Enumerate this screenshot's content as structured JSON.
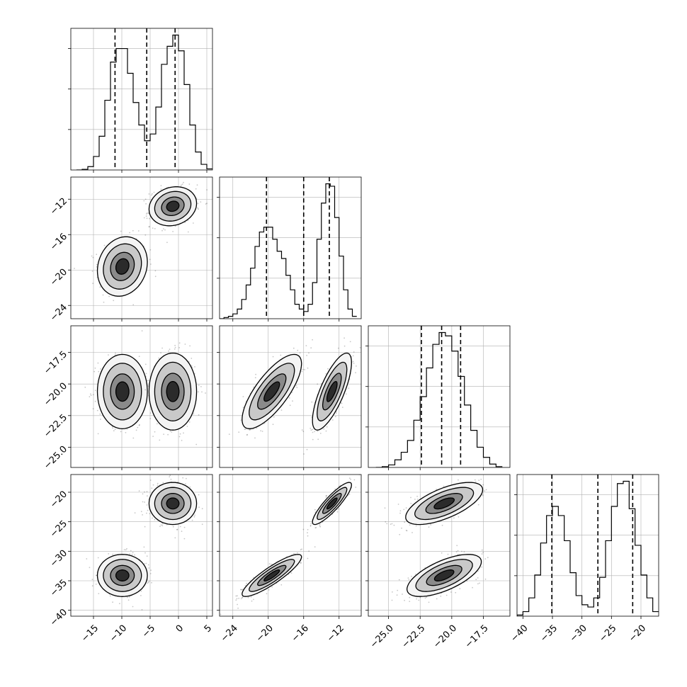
{
  "chart_data": {
    "type": "corner",
    "variables": [
      {
        "range": [
          -19,
          6
        ],
        "ticks": [
          -15,
          -10,
          -5,
          0,
          5
        ],
        "tick_labels": [
          "−15",
          "−10",
          "−5",
          "0",
          "5"
        ]
      },
      {
        "range": [
          -25.5,
          -9.5
        ],
        "ticks": [
          -24,
          -20,
          -16,
          -12
        ],
        "tick_labels": [
          "−24",
          "−20",
          "−16",
          "−12"
        ]
      },
      {
        "range": [
          -26.6,
          -15.4
        ],
        "ticks": [
          -25,
          -22.5,
          -20,
          -17.5
        ],
        "tick_labels": [
          "−25.0",
          "−22.5",
          "−20.0",
          "−17.5"
        ]
      },
      {
        "range": [
          -41,
          -17
        ],
        "ticks": [
          -40,
          -35,
          -30,
          -25,
          -20
        ],
        "tick_labels": [
          "−40",
          "−35",
          "−30",
          "−25",
          "−20"
        ]
      }
    ],
    "histograms": [
      {
        "bin_edges": [
          -18,
          -17,
          -16,
          -15,
          -14,
          -13,
          -12,
          -11,
          -10,
          -9,
          -8,
          -7,
          -6,
          -5,
          -4,
          -3,
          -2,
          -1,
          0,
          1,
          2,
          3,
          4,
          5,
          6
        ],
        "counts": [
          0,
          3,
          15,
          60,
          150,
          310,
          480,
          540,
          540,
          430,
          300,
          200,
          130,
          160,
          280,
          470,
          550,
          600,
          530,
          380,
          200,
          80,
          25,
          5
        ],
        "quantiles": [
          -11.2,
          -5.6,
          -0.6
        ]
      },
      {
        "bin_edges": [
          -25.5,
          -25,
          -24.5,
          -24,
          -23.5,
          -23,
          -22.5,
          -22,
          -21.5,
          -21,
          -20.5,
          -20,
          -19.5,
          -19,
          -18.5,
          -18,
          -17.5,
          -17,
          -16.5,
          -16,
          -15.5,
          -15,
          -14.5,
          -14,
          -13.5,
          -13,
          -12.5,
          -12,
          -11.5,
          -11,
          -10.5,
          -10
        ],
        "counts": [
          0,
          5,
          10,
          20,
          40,
          80,
          140,
          210,
          300,
          360,
          380,
          380,
          330,
          280,
          250,
          180,
          120,
          60,
          40,
          30,
          60,
          150,
          330,
          480,
          560,
          550,
          420,
          260,
          120,
          40,
          10
        ],
        "quantiles": [
          -20.2,
          -16,
          -13.1
        ]
      },
      {
        "bin_edges": [
          -26,
          -25.5,
          -25,
          -24.5,
          -24,
          -23.5,
          -23,
          -22.5,
          -22,
          -21.5,
          -21,
          -20.5,
          -20,
          -19.5,
          -19,
          -18.5,
          -18,
          -17.5,
          -17,
          -16.5,
          -16
        ],
        "counts": [
          0,
          5,
          15,
          45,
          90,
          160,
          280,
          420,
          590,
          730,
          800,
          780,
          690,
          540,
          370,
          220,
          120,
          60,
          20,
          5
        ],
        "quantiles": [
          -22.4,
          -20.8,
          -19.3
        ]
      },
      {
        "bin_edges": [
          -41,
          -40,
          -39,
          -38,
          -37,
          -36,
          -35,
          -34,
          -33,
          -32,
          -31,
          -30,
          -29,
          -28,
          -27,
          -26,
          -25,
          -24,
          -23,
          -22,
          -21,
          -20,
          -19,
          -18,
          -17
        ],
        "counts": [
          5,
          20,
          80,
          180,
          320,
          440,
          480,
          440,
          330,
          190,
          90,
          50,
          40,
          80,
          170,
          330,
          480,
          580,
          590,
          470,
          310,
          180,
          80,
          20
        ],
        "quantiles": [
          -35.1,
          -27.3,
          -21.4
        ]
      }
    ],
    "clusters": [
      {
        "means": [
          -9.9,
          -19.6,
          -20.6,
          -34.1
        ],
        "sds": [
          2.1,
          1.6,
          1.4,
          1.7
        ]
      },
      {
        "means": [
          -1.0,
          -12.8,
          -20.6,
          -21.9
        ],
        "sds": [
          2.0,
          1.05,
          1.45,
          1.7
        ]
      }
    ],
    "correlations": [
      [
        0.0,
        0.0,
        0.0,
        0.0
      ],
      [
        0.15,
        0.0,
        0.0,
        0.0
      ],
      [
        0.0,
        0.75,
        0.0,
        0.0
      ],
      [
        0.0,
        0.88,
        0.65,
        0.0
      ]
    ],
    "contour_levels_sigma": [
      0.55,
      1.0,
      1.6,
      2.1
    ],
    "grid": true
  }
}
